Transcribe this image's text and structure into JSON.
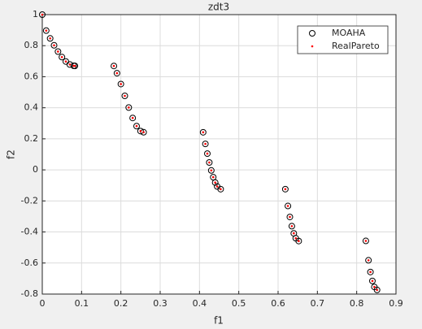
{
  "chart_data": {
    "type": "scatter",
    "title": "zdt3",
    "x_label": "f1",
    "y_label": "f2",
    "x": [
      0,
      0.01,
      0.02,
      0.03,
      0.04,
      0.05,
      0.06,
      0.07,
      0.08,
      0.083,
      0.1822,
      0.19,
      0.2,
      0.21,
      0.22,
      0.23,
      0.24,
      0.25,
      0.2578,
      0.4093,
      0.415,
      0.42,
      0.425,
      0.43,
      0.435,
      0.44,
      0.445,
      0.4539,
      0.6184,
      0.625,
      0.63,
      0.635,
      0.64,
      0.645,
      0.6525,
      0.8233,
      0.83,
      0.835,
      0.84,
      0.845,
      0.8518
    ],
    "series": [
      {
        "name": "MOAHA",
        "color": "#000000",
        "marker": "circle",
        "values": [
          1,
          0.897,
          0.8468,
          0.8025,
          0.762,
          0.7264,
          0.698,
          0.6788,
          0.6702,
          0.6697,
          0.6692,
          0.6228,
          0.5528,
          0.4768,
          0.4016,
          0.3343,
          0.2819,
          0.25,
          0.2423,
          0.2422,
          0.1674,
          0.1049,
          0.0476,
          -0.0036,
          -0.0471,
          -0.0817,
          -0.1068,
          -0.1242,
          -0.1241,
          -0.2325,
          -0.3034,
          -0.3627,
          -0.4086,
          -0.4404,
          -0.4584,
          -0.4574,
          -0.5825,
          -0.6578,
          -0.7153,
          -0.7541,
          -0.7733
        ]
      },
      {
        "name": "RealPareto",
        "color": "#ff0000",
        "marker": "dot",
        "values": [
          1,
          0.897,
          0.8468,
          0.8025,
          0.762,
          0.7264,
          0.698,
          0.6788,
          0.6702,
          0.6697,
          0.6692,
          0.6228,
          0.5528,
          0.4768,
          0.4016,
          0.3343,
          0.2819,
          0.25,
          0.2423,
          0.2422,
          0.1674,
          0.1049,
          0.0476,
          -0.0036,
          -0.0471,
          -0.0817,
          -0.1068,
          -0.1242,
          -0.1241,
          -0.2325,
          -0.3034,
          -0.3627,
          -0.4086,
          -0.4404,
          -0.4584,
          -0.4574,
          -0.5825,
          -0.6578,
          -0.7153,
          -0.7541,
          -0.7733
        ]
      }
    ],
    "xlim": [
      0,
      0.9
    ],
    "xticks": [
      0,
      0.1,
      0.2,
      0.3,
      0.4,
      0.5,
      0.6,
      0.7,
      0.8,
      0.9
    ],
    "ylim": [
      -0.8,
      1
    ],
    "yticks": [
      -0.8,
      -0.6,
      -0.4,
      -0.2,
      0,
      0.2,
      0.4,
      0.6,
      0.8,
      1
    ],
    "grid": true,
    "legend": "northeast"
  }
}
